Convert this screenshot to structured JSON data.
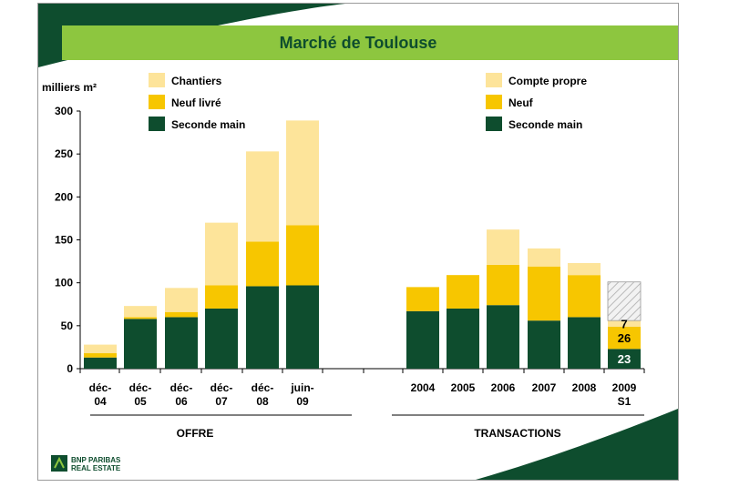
{
  "title": "Marché de Toulouse",
  "logo": {
    "line1": "BNP PARIBAS",
    "line2": "REAL ESTATE"
  },
  "colors": {
    "dark_green": "#0e4d2e",
    "light_green": "#8dc63f",
    "yellow": "#f7c600",
    "light_yellow": "#fde49a",
    "hatch": "#b8b8b8"
  },
  "chart_data": [
    {
      "type": "bar",
      "stacked": true,
      "group_label": "OFFRE",
      "ylabel": "milliers m²",
      "ylim": [
        0,
        300
      ],
      "yticks": [
        0,
        50,
        100,
        150,
        200,
        250,
        300
      ],
      "categories": [
        [
          "déc-",
          "04"
        ],
        [
          "déc-",
          "05"
        ],
        [
          "déc-",
          "06"
        ],
        [
          "déc-",
          "07"
        ],
        [
          "déc-",
          "08"
        ],
        [
          "juin-",
          "09"
        ]
      ],
      "series": [
        {
          "name": "Seconde main",
          "color": "#0e4d2e",
          "values": [
            13,
            58,
            60,
            70,
            96,
            97
          ]
        },
        {
          "name": "Neuf livré",
          "color": "#f7c600",
          "values": [
            5,
            2,
            6,
            27,
            52,
            70
          ]
        },
        {
          "name": "Chantiers",
          "color": "#fde49a",
          "values": [
            10,
            13,
            28,
            73,
            105,
            122
          ]
        }
      ],
      "legend_position": "top"
    },
    {
      "type": "bar",
      "stacked": true,
      "group_label": "TRANSACTIONS",
      "ylim": [
        0,
        300
      ],
      "categories": [
        [
          "2004"
        ],
        [
          "2005"
        ],
        [
          "2006"
        ],
        [
          "2007"
        ],
        [
          "2008"
        ],
        [
          "2009",
          "S1"
        ]
      ],
      "series": [
        {
          "name": "Seconde main",
          "color": "#0e4d2e",
          "values": [
            67,
            70,
            74,
            56,
            60,
            23
          ]
        },
        {
          "name": "Neuf",
          "color": "#f7c600",
          "values": [
            28,
            39,
            47,
            63,
            49,
            26
          ]
        },
        {
          "name": "Compte propre",
          "color": "#fde49a",
          "values": [
            0,
            0,
            41,
            21,
            14,
            7
          ]
        }
      ],
      "hatched_remainder": {
        "category_index": 5,
        "value": 45
      },
      "data_labels": [
        {
          "category_index": 5,
          "labels": [
            "23",
            "26",
            "7"
          ]
        }
      ],
      "legend_position": "top-right"
    }
  ]
}
